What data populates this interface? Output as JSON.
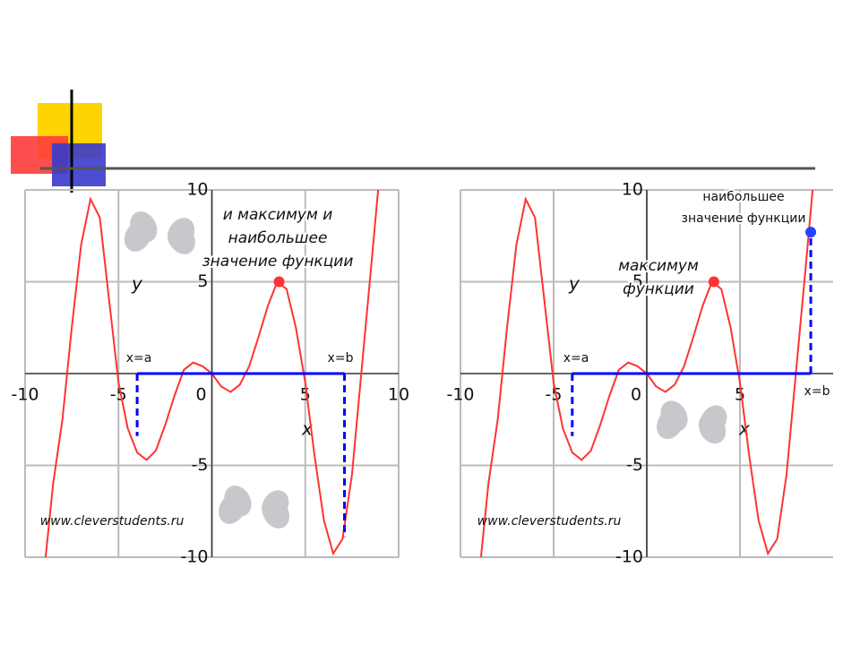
{
  "chart_data": [
    {
      "type": "line",
      "x": [
        -8.9,
        -8.5,
        -8,
        -7.5,
        -7,
        -6.5,
        -6,
        -5.5,
        -5,
        -4.5,
        -4,
        -3.5,
        -3,
        -2.5,
        -2,
        -1.5,
        -1,
        -0.5,
        0,
        0.5,
        1,
        1.5,
        2,
        2.5,
        3,
        3.5,
        4,
        4.5,
        5,
        5.5,
        6,
        6.5,
        7,
        7.5,
        8,
        8.5,
        8.9
      ],
      "values": [
        -10,
        -6,
        -2.5,
        2.5,
        7,
        9.5,
        8.5,
        4,
        -0.5,
        -3,
        -4.3,
        -4.7,
        -4.2,
        -2.8,
        -1.2,
        0.2,
        0.6,
        0.4,
        0,
        -0.7,
        -1,
        -0.6,
        0.4,
        2,
        3.7,
        5,
        4.6,
        2.5,
        -0.5,
        -4.5,
        -8,
        -9.8,
        -9,
        -5.5,
        0,
        5.5,
        10
      ],
      "color": "#ff3333",
      "xlim": [
        -10,
        10
      ],
      "ylim": [
        -10,
        10
      ],
      "xticks": [
        -10,
        -5,
        0,
        5,
        10
      ],
      "yticks": [
        -10,
        -5,
        5,
        10
      ],
      "grid": true,
      "xlabel": "x",
      "ylabel": "y",
      "point": {
        "x": 3.6,
        "y": 5,
        "color": "#ff3333"
      },
      "interval": {
        "x": [
          -4,
          7.1
        ],
        "y": [
          0,
          0
        ],
        "ends": [
          -3.4,
          -8.9
        ],
        "labels": [
          "x=a",
          "x=b"
        ],
        "color": "#0000ff"
      },
      "annotations": [
        "и максимум и",
        "наибольшее",
        "значение функции"
      ],
      "source": "www.cleverstudents.ru"
    },
    {
      "type": "line",
      "x": [
        -8.9,
        -8.5,
        -8,
        -7.5,
        -7,
        -6.5,
        -6,
        -5.5,
        -5,
        -4.5,
        -4,
        -3.5,
        -3,
        -2.5,
        -2,
        -1.5,
        -1,
        -0.5,
        0,
        0.5,
        1,
        1.5,
        2,
        2.5,
        3,
        3.5,
        4,
        4.5,
        5,
        5.5,
        6,
        6.5,
        7,
        7.5,
        8,
        8.5,
        8.9
      ],
      "values": [
        -10,
        -6,
        -2.5,
        2.5,
        7,
        9.5,
        8.5,
        4,
        -0.5,
        -3,
        -4.3,
        -4.7,
        -4.2,
        -2.8,
        -1.2,
        0.2,
        0.6,
        0.4,
        0,
        -0.7,
        -1,
        -0.6,
        0.4,
        2,
        3.7,
        5,
        4.6,
        2.5,
        -0.5,
        -4.5,
        -8,
        -9.8,
        -9,
        -5.5,
        0,
        5.5,
        10
      ],
      "color": "#ff3333",
      "xlim": [
        -10,
        10
      ],
      "ylim": [
        -10,
        10
      ],
      "xticks": [
        -10,
        -5,
        0,
        5
      ],
      "yticks": [
        -10,
        -5,
        5,
        10
      ],
      "grid": true,
      "xlabel": "x",
      "ylabel": "y",
      "point": {
        "x": 3.6,
        "y": 5,
        "color": "#ff3333"
      },
      "point2": {
        "x": 8.8,
        "y": 7.7,
        "color": "#2244ff"
      },
      "interval": {
        "x": [
          -4,
          8.8
        ],
        "y": [
          0,
          0
        ],
        "ends": [
          -3.4,
          7.7
        ],
        "labels": [
          "x=a",
          "x=b"
        ],
        "color": "#0000ff"
      },
      "annotations": [
        "наибольшее",
        "значение функции",
        "максимум",
        "функции"
      ],
      "source": "www.cleverstudents.ru"
    }
  ]
}
